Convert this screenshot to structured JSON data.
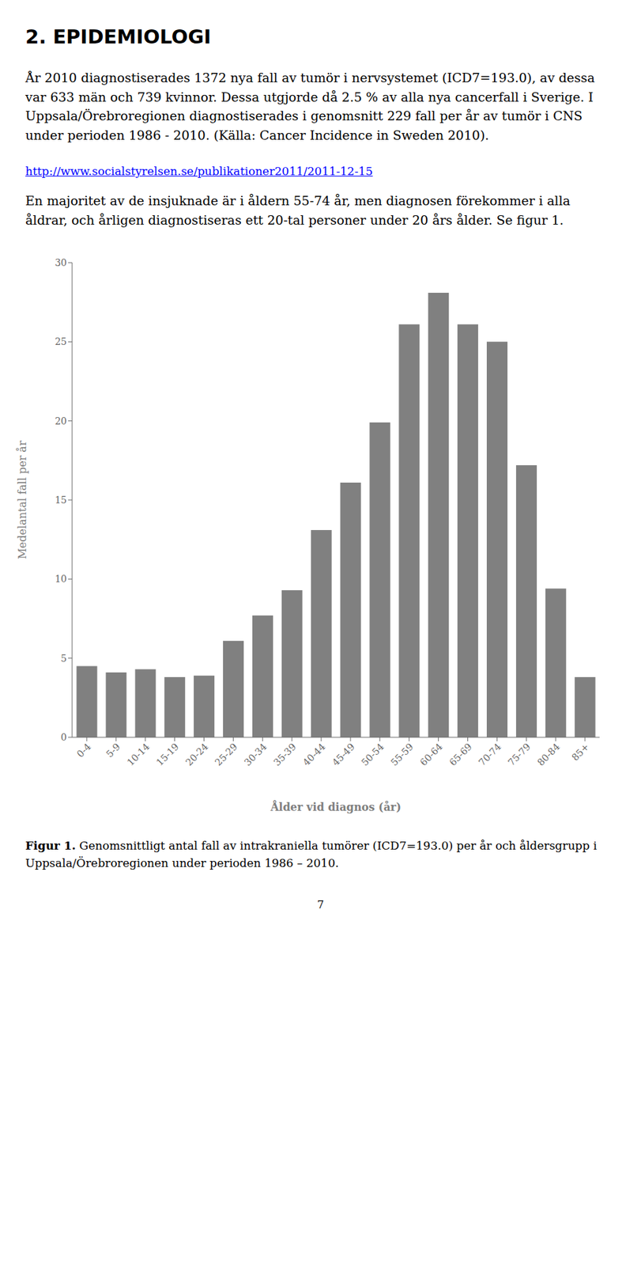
{
  "chart_data": {
    "type": "bar",
    "title": "2. EPIDEMIOLOGI",
    "annotations": [
      "År 2010 diagnostiserades 1372 nya fall av tumör i nervsystemet (ICD7=193.0), av dessa var 633 män och 739 kvinnor. Dessa utgjorde då 2.5 % av alla nya cancerfall i Sverige. I Uppsala/Örebroregionen diagnostiserades i genomsnitt 229 fall per år av tumör i CNS under perioden 1986 - 2010. (Källa: Cancer Incidence in Sweden 2010).",
      "http://www.socialstyrelsen.se/publikationer2011/2011-12-15",
      "En majoritet av de insjuknade är i åldern 55-74 år, men diagnosen förekommer i alla åldrar, och årligen diagnostiseras ett 20-tal personer under 20 års ålder. Se figur 1.",
      "Figur 1. Genomsnittligt antal fall av intrakraniella tumörer (ICD7=193.0) per år och åldersgrupp i Uppsala/Örebroregionen under perioden 1986 – 2010.",
      "7"
    ],
    "categories": [
      "0-4",
      "5-9",
      "10-14",
      "15-19",
      "20-24",
      "25-29",
      "30-34",
      "35-39",
      "40-44",
      "45-49",
      "50-54",
      "55-59",
      "60-64",
      "65-69",
      "70-74",
      "75-79",
      "80-84",
      "85+"
    ],
    "values": [
      4.5,
      4.1,
      4.3,
      3.8,
      3.9,
      6.1,
      7.7,
      9.3,
      13.1,
      16.1,
      19.9,
      26.1,
      28.1,
      26.1,
      25.0,
      17.2,
      9.4,
      3.8
    ],
    "color": "#808080",
    "xlabel": "Ålder vid diagnos (år)",
    "ylabel": "Medelantal fall per år",
    "ylim": [
      0,
      30
    ],
    "yticks": [
      0,
      5,
      10,
      15,
      20,
      25,
      30
    ],
    "grid": false
  }
}
